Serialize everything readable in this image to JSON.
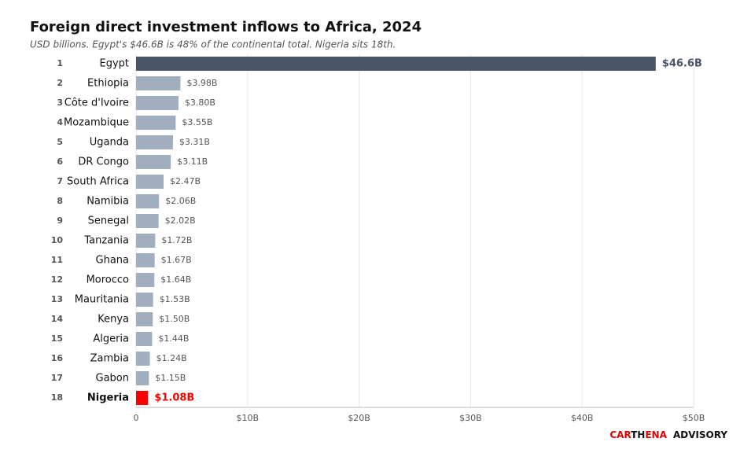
{
  "chart_data": {
    "type": "bar",
    "orientation": "horizontal",
    "title": "Foreign direct investment inflows to Africa, 2024",
    "subtitle": "USD billions. Egypt's $46.6B is 48% of the continental total. Nigeria sits 18th.",
    "ranks": [
      1,
      2,
      3,
      4,
      5,
      6,
      7,
      8,
      9,
      10,
      11,
      12,
      13,
      14,
      15,
      16,
      17,
      18
    ],
    "categories": [
      "Egypt",
      "Ethiopia",
      "Côte d'Ivoire",
      "Mozambique",
      "Uganda",
      "DR Congo",
      "South Africa",
      "Namibia",
      "Senegal",
      "Tanzania",
      "Ghana",
      "Morocco",
      "Mauritania",
      "Kenya",
      "Algeria",
      "Zambia",
      "Gabon",
      "Nigeria"
    ],
    "values": [
      46.6,
      3.98,
      3.8,
      3.55,
      3.31,
      3.11,
      2.47,
      2.06,
      2.02,
      1.72,
      1.67,
      1.64,
      1.53,
      1.5,
      1.44,
      1.24,
      1.15,
      1.08
    ],
    "value_labels": [
      "$46.6B",
      "$3.98B",
      "$3.80B",
      "$3.55B",
      "$3.31B",
      "$3.11B",
      "$2.47B",
      "$2.06B",
      "$2.02B",
      "$1.72B",
      "$1.67B",
      "$1.64B",
      "$1.53B",
      "$1.50B",
      "$1.44B",
      "$1.24B",
      "$1.15B",
      "$1.08B"
    ],
    "colors": [
      "#4a5568",
      "#a0aec0",
      "#a0aec0",
      "#a0aec0",
      "#a0aec0",
      "#a0aec0",
      "#a0aec0",
      "#a0aec0",
      "#a0aec0",
      "#a0aec0",
      "#a0aec0",
      "#a0aec0",
      "#a0aec0",
      "#a0aec0",
      "#a0aec0",
      "#a0aec0",
      "#a0aec0",
      "#ff0000"
    ],
    "highlight_index": 17,
    "xlim": [
      0,
      50
    ],
    "xticks": [
      0,
      {
        "value": 10,
        "label": "$10B"
      },
      {
        "value": 20,
        "label": "$20B"
      },
      {
        "value": 30,
        "label": "$30B"
      },
      {
        "value": 40,
        "label": "$40B"
      },
      {
        "value": 50,
        "label": "$50B"
      }
    ],
    "grid": true,
    "brand": [
      {
        "text": "CAR",
        "color": "#e00000"
      },
      {
        "text": "TH",
        "color": "#111111"
      },
      {
        "text": "ENA",
        "color": "#e00000"
      },
      {
        "text": "ADVISORY",
        "color": "#111111"
      }
    ]
  }
}
